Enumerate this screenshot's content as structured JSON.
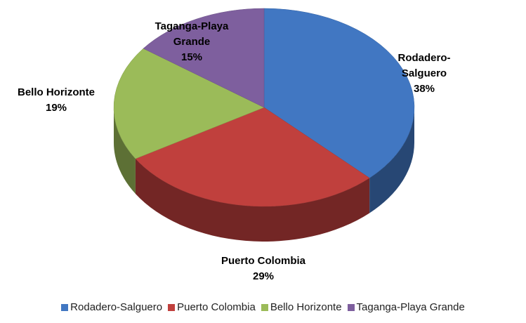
{
  "chart_data": {
    "type": "pie",
    "categories": [
      "Rodadero-Salguero",
      "Puerto Colombia",
      "Bello Horizonte",
      "Taganga-Playa Grande"
    ],
    "values": [
      38,
      29,
      19,
      15
    ],
    "value_labels": [
      "38%",
      "29%",
      "19%",
      "15%"
    ],
    "colors": [
      "#4177c2",
      "#c0403d",
      "#9bbb59",
      "#7e5f9e"
    ],
    "legend": "bottom"
  }
}
